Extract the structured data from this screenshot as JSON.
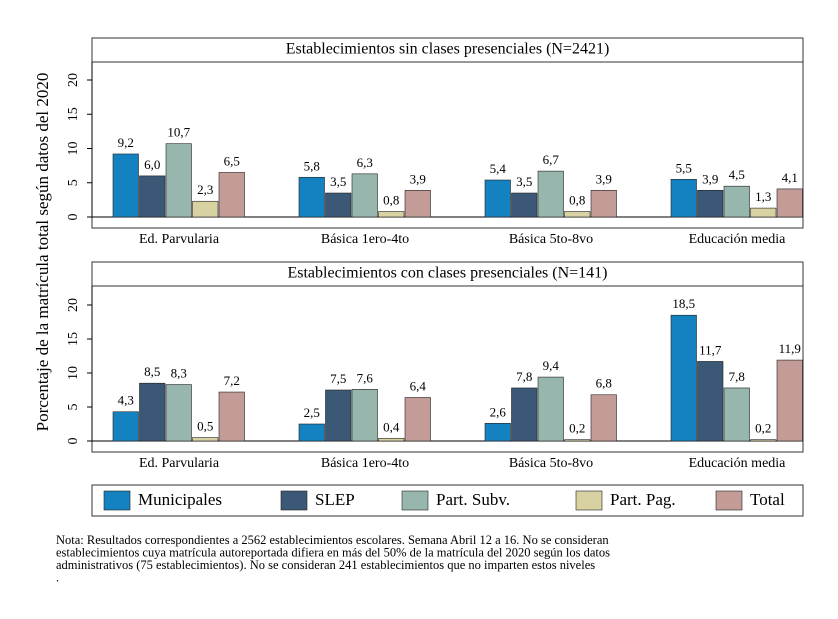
{
  "chart_data": [
    {
      "type": "bar",
      "title": "Establecimientos sin clases presenciales (N=2421)",
      "ylabel": "Porcentaje de la matrícula total según datos del 2020",
      "categories": [
        "Ed. Parvularia",
        "Básica 1ero-4to",
        "Básica 5to-8vo",
        "Educación media"
      ],
      "ylim": [
        0,
        20
      ],
      "yticks": [
        0,
        5,
        10,
        15,
        20
      ],
      "grid": false,
      "series": [
        {
          "name": "Municipales",
          "color": "#1482c0",
          "values": [
            9.2,
            5.8,
            5.4,
            5.5
          ],
          "value_labels": [
            "9,2",
            "5,8",
            "5,4",
            "5,5"
          ]
        },
        {
          "name": "SLEP",
          "color": "#3b5877",
          "values": [
            6.0,
            3.5,
            3.5,
            3.9
          ],
          "value_labels": [
            "6,0",
            "3,5",
            "3,5",
            "3,9"
          ]
        },
        {
          "name": "Part. Subv.",
          "color": "#97b6ad",
          "values": [
            10.7,
            6.3,
            6.7,
            4.5
          ],
          "value_labels": [
            "10,7",
            "6,3",
            "6,7",
            "4,5"
          ]
        },
        {
          "name": "Part. Pag.",
          "color": "#d8d2a2",
          "values": [
            2.3,
            0.8,
            0.8,
            1.3
          ],
          "value_labels": [
            "2,3",
            "0,8",
            "0,8",
            "1,3"
          ]
        },
        {
          "name": "Total",
          "color": "#c39b97",
          "values": [
            6.5,
            3.9,
            3.9,
            4.1
          ],
          "value_labels": [
            "6,5",
            "3,9",
            "3,9",
            "4,1"
          ]
        }
      ]
    },
    {
      "type": "bar",
      "title": "Establecimientos con clases presenciales (N=141)",
      "categories": [
        "Ed. Parvularia",
        "Básica 1ero-4to",
        "Básica 5to-8vo",
        "Educación media"
      ],
      "ylim": [
        0,
        20
      ],
      "yticks": [
        0,
        5,
        10,
        15,
        20
      ],
      "grid": false,
      "series": [
        {
          "values": [
            4.3,
            2.5,
            2.6,
            18.5
          ],
          "value_labels": [
            "4,3",
            "2,5",
            "2,6",
            "18,5"
          ]
        },
        {
          "values": [
            8.5,
            7.5,
            7.8,
            11.7
          ],
          "value_labels": [
            "8,5",
            "7,5",
            "7,8",
            "11,7"
          ]
        },
        {
          "values": [
            8.3,
            7.6,
            9.4,
            7.8
          ],
          "value_labels": [
            "8,3",
            "7,6",
            "9,4",
            "7,8"
          ]
        },
        {
          "values": [
            0.5,
            0.4,
            0.2,
            0.2
          ],
          "value_labels": [
            "0,5",
            "0,4",
            "0,2",
            "0,2"
          ]
        },
        {
          "values": [
            7.2,
            6.4,
            6.8,
            11.9
          ],
          "value_labels": [
            "7,2",
            "6,4",
            "6,8",
            "11,9"
          ]
        }
      ]
    }
  ],
  "note": [
    "Nota: Resultados correspondientes a 2562 establecimientos escolares. Semana Abril 12 a 16. No se consideran",
    "establecimientos cuya matrícula autoreportada difiera en más del 50% de la matrícula del 2020 según los datos",
    "administrativos (75 establecimientos). No se consideran 241 establecimientos que no imparten estos niveles",
    "."
  ]
}
